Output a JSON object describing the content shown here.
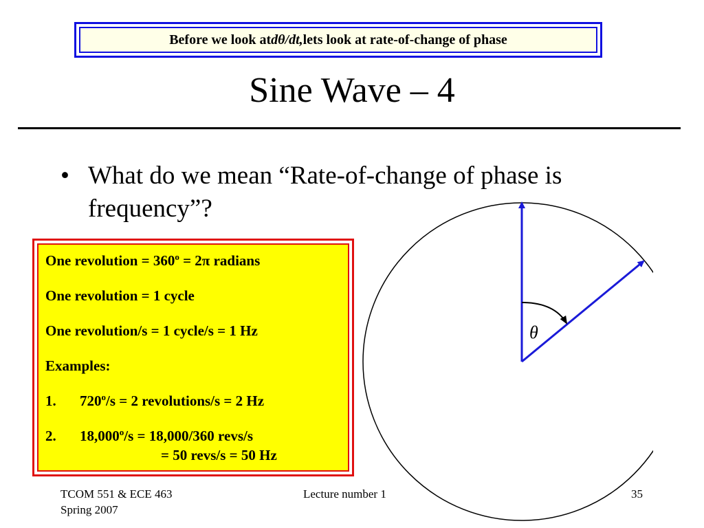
{
  "banner": {
    "before": "Before we look at ",
    "italic": "dθ/dt,",
    "after": " lets look at rate-of-change of phase"
  },
  "title": "Sine Wave – 4",
  "bullet": {
    "marker": "•",
    "text": "What do we mean “Rate-of-change of phase is frequency”?"
  },
  "box": {
    "line1": {
      "pre": "One revolution = 360",
      "sup": "o",
      "post": " = 2π radians"
    },
    "line2": "One revolution = 1 cycle",
    "line3": "One revolution/s = 1 cycle/s = 1 Hz",
    "examples_label": "Examples:",
    "ex1": {
      "num": "1.",
      "pre": "720",
      "sup": "o",
      "post": "/s = 2 revolutions/s = 2 Hz"
    },
    "ex2": {
      "num": "2.",
      "pre": "18,000",
      "sup": "o",
      "post": "/s = 18,000/360 revs/s",
      "cont": "= 50 revs/s = 50 Hz"
    }
  },
  "diagram": {
    "angle_label": "θ",
    "vector_color": "#1a1ad8",
    "arc_color": "#000000"
  },
  "footer": {
    "course_line1": "TCOM 551 & ECE 463",
    "course_line2": "Spring 2007",
    "lecture": "Lecture number 1",
    "page": "35"
  }
}
